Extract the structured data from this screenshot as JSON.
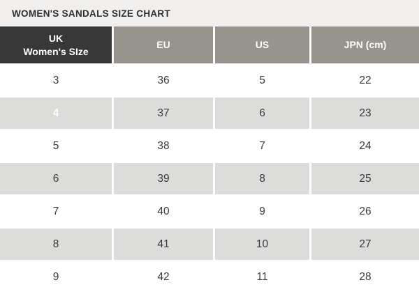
{
  "title": "WOMEN'S SANDALS SIZE CHART",
  "colors": {
    "title_bar_bg": "#f0efee",
    "header_dark_bg": "#383838",
    "header_gray_bg": "#96948d",
    "row_alt_bg": "#dcdcdb",
    "highlight_cell_bg": "#000000",
    "body_text": "#3a3a3a"
  },
  "table": {
    "headers": {
      "uk_line1": "UK",
      "uk_line2": "Women's SIze",
      "eu": "EU",
      "us": "US",
      "jpn": "JPN (cm)"
    },
    "highlighted_uk_size": "4",
    "rows": [
      {
        "uk": "3",
        "eu": "36",
        "us": "5",
        "jpn": "22"
      },
      {
        "uk": "4",
        "eu": "37",
        "us": "6",
        "jpn": "23"
      },
      {
        "uk": "5",
        "eu": "38",
        "us": "7",
        "jpn": "24"
      },
      {
        "uk": "6",
        "eu": "39",
        "us": "8",
        "jpn": "25"
      },
      {
        "uk": "7",
        "eu": "40",
        "us": "9",
        "jpn": "26"
      },
      {
        "uk": "8",
        "eu": "41",
        "us": "10",
        "jpn": "27"
      },
      {
        "uk": "9",
        "eu": "42",
        "us": "11",
        "jpn": "28"
      }
    ]
  }
}
